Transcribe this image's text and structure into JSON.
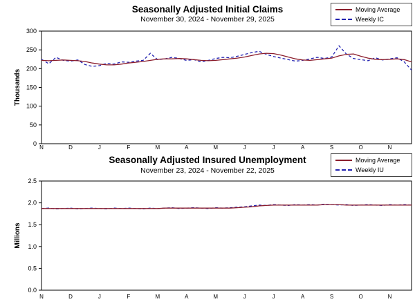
{
  "page": {
    "background": "#ffffff"
  },
  "chart_data": [
    {
      "type": "line",
      "title": "Seasonally Adjusted Initial Claims",
      "subtitle": "November 30, 2024 - November 29, 2025",
      "ylabel": "Thousands",
      "ylim": [
        0,
        300
      ],
      "ytick_labels": [
        "0",
        "50",
        "100",
        "150",
        "200",
        "250",
        "300"
      ],
      "x_month_labels": [
        "N",
        "D",
        "J",
        "F",
        "M",
        "A",
        "M",
        "J",
        "J",
        "A",
        "S",
        "O",
        "N"
      ],
      "grid": false,
      "legend_position": "top-right",
      "series": [
        {
          "name": "Moving Average",
          "color": "#8b1d2c",
          "dash": null,
          "values": [
            222,
            221,
            222,
            223,
            222,
            221,
            219,
            215,
            212,
            210,
            210,
            212,
            215,
            217,
            219,
            222,
            225,
            226,
            226,
            227,
            226,
            224,
            222,
            221,
            222,
            224,
            226,
            228,
            231,
            235,
            239,
            241,
            240,
            236,
            231,
            226,
            223,
            222,
            224,
            226,
            228,
            234,
            238,
            239,
            233,
            228,
            225,
            224,
            225,
            226,
            224,
            218
          ]
        },
        {
          "name": "Weekly IC",
          "color": "#2020b0",
          "dash": "4,3",
          "values": [
            225,
            213,
            230,
            222,
            220,
            223,
            211,
            206,
            208,
            214,
            212,
            218,
            217,
            220,
            222,
            241,
            224,
            226,
            230,
            227,
            222,
            224,
            218,
            222,
            227,
            230,
            229,
            233,
            238,
            243,
            246,
            238,
            232,
            228,
            224,
            220,
            222,
            226,
            230,
            227,
            231,
            261,
            239,
            227,
            224,
            221,
            229,
            223,
            226,
            229,
            218,
            196
          ]
        }
      ]
    },
    {
      "type": "line",
      "title": "Seasonally Adjusted Insured Unemployment",
      "subtitle": "November 23, 2024 - November 22, 2025",
      "ylabel": "Millions",
      "ylim": [
        0,
        2.5
      ],
      "ytick_labels": [
        "0.0",
        "0.5",
        "1.0",
        "1.5",
        "2.0",
        "2.5"
      ],
      "x_month_labels": [
        "N",
        "D",
        "J",
        "F",
        "M",
        "A",
        "M",
        "J",
        "J",
        "A",
        "S",
        "O",
        "N"
      ],
      "grid": false,
      "legend_position": "top-right",
      "series": [
        {
          "name": "Moving Average",
          "color": "#8b1d2c",
          "dash": null,
          "values": [
            1.87,
            1.87,
            1.87,
            1.87,
            1.87,
            1.87,
            1.87,
            1.87,
            1.87,
            1.87,
            1.87,
            1.87,
            1.87,
            1.87,
            1.87,
            1.87,
            1.87,
            1.88,
            1.88,
            1.88,
            1.88,
            1.88,
            1.88,
            1.88,
            1.88,
            1.88,
            1.88,
            1.89,
            1.9,
            1.91,
            1.93,
            1.94,
            1.95,
            1.95,
            1.95,
            1.95,
            1.95,
            1.95,
            1.95,
            1.96,
            1.96,
            1.96,
            1.95,
            1.95,
            1.95,
            1.95,
            1.95,
            1.95,
            1.95,
            1.95,
            1.95,
            1.95
          ]
        },
        {
          "name": "Weekly IU",
          "color": "#2020b0",
          "dash": "4,3",
          "values": [
            1.87,
            1.88,
            1.86,
            1.87,
            1.88,
            1.86,
            1.87,
            1.88,
            1.87,
            1.86,
            1.88,
            1.87,
            1.88,
            1.87,
            1.86,
            1.88,
            1.87,
            1.88,
            1.89,
            1.87,
            1.88,
            1.89,
            1.88,
            1.87,
            1.89,
            1.88,
            1.89,
            1.9,
            1.91,
            1.93,
            1.95,
            1.94,
            1.96,
            1.95,
            1.94,
            1.96,
            1.95,
            1.96,
            1.95,
            1.97,
            1.96,
            1.95,
            1.96,
            1.94,
            1.95,
            1.96,
            1.95,
            1.94,
            1.96,
            1.95,
            1.96,
            1.95
          ]
        }
      ]
    }
  ]
}
